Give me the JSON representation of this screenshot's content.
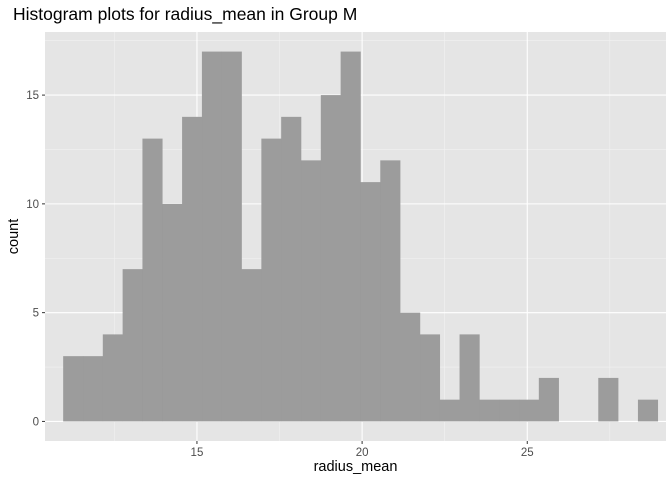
{
  "chart_data": {
    "type": "bar",
    "title": "Histogram plots for radius_mean in Group M",
    "xlabel": "radius_mean",
    "ylabel": "count",
    "xlim": [
      10.4,
      29.2
    ],
    "ylim": [
      -0.9,
      17.9
    ],
    "x_ticks": [
      15,
      20,
      25
    ],
    "x_tick_labels": [
      "15",
      "20",
      "25"
    ],
    "y_ticks": [
      0,
      5,
      10,
      15
    ],
    "y_tick_labels": [
      "0",
      "5",
      "10",
      "15"
    ],
    "grid": true,
    "bar_color": "#999999",
    "panel_background": "#e5e5e5",
    "bins": [
      {
        "x0": 10.95,
        "x1": 11.55,
        "count": 3
      },
      {
        "x0": 11.55,
        "x1": 12.15,
        "count": 3
      },
      {
        "x0": 12.15,
        "x1": 12.75,
        "count": 4
      },
      {
        "x0": 12.75,
        "x1": 13.35,
        "count": 7
      },
      {
        "x0": 13.35,
        "x1": 13.95,
        "count": 13
      },
      {
        "x0": 13.95,
        "x1": 14.55,
        "count": 10
      },
      {
        "x0": 14.55,
        "x1": 15.15,
        "count": 14
      },
      {
        "x0": 15.15,
        "x1": 15.75,
        "count": 17
      },
      {
        "x0": 15.75,
        "x1": 16.35,
        "count": 17
      },
      {
        "x0": 16.35,
        "x1": 16.95,
        "count": 7
      },
      {
        "x0": 16.95,
        "x1": 17.55,
        "count": 13
      },
      {
        "x0": 17.55,
        "x1": 18.15,
        "count": 14
      },
      {
        "x0": 18.15,
        "x1": 18.75,
        "count": 12
      },
      {
        "x0": 18.75,
        "x1": 19.35,
        "count": 15
      },
      {
        "x0": 19.35,
        "x1": 19.95,
        "count": 17
      },
      {
        "x0": 19.95,
        "x1": 20.55,
        "count": 11
      },
      {
        "x0": 20.55,
        "x1": 21.15,
        "count": 12
      },
      {
        "x0": 21.15,
        "x1": 21.75,
        "count": 5
      },
      {
        "x0": 21.75,
        "x1": 22.35,
        "count": 4
      },
      {
        "x0": 22.35,
        "x1": 22.95,
        "count": 1
      },
      {
        "x0": 22.95,
        "x1": 23.55,
        "count": 4
      },
      {
        "x0": 23.55,
        "x1": 24.15,
        "count": 1
      },
      {
        "x0": 24.15,
        "x1": 24.75,
        "count": 1
      },
      {
        "x0": 24.75,
        "x1": 25.35,
        "count": 1
      },
      {
        "x0": 25.35,
        "x1": 25.95,
        "count": 2
      },
      {
        "x0": 25.95,
        "x1": 26.55,
        "count": 0
      },
      {
        "x0": 26.55,
        "x1": 27.15,
        "count": 0
      },
      {
        "x0": 27.15,
        "x1": 27.75,
        "count": 2
      },
      {
        "x0": 27.75,
        "x1": 28.35,
        "count": 0
      },
      {
        "x0": 28.35,
        "x1": 28.95,
        "count": 1
      }
    ]
  }
}
